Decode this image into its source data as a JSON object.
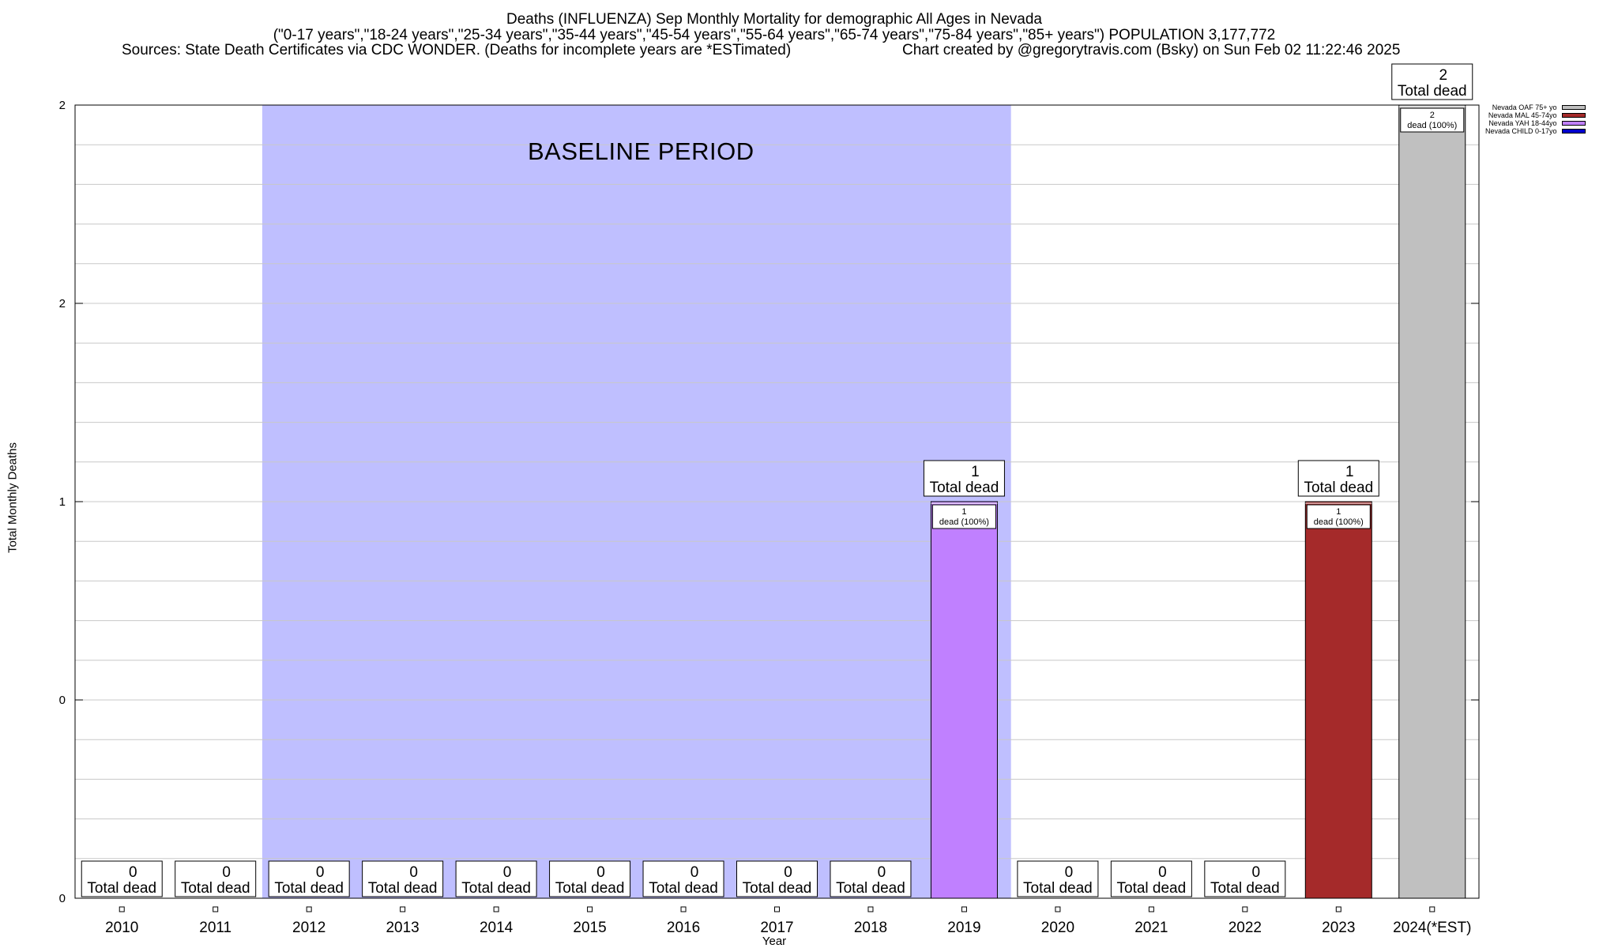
{
  "header": {
    "title_line1": "Deaths (INFLUENZA) Sep Monthly Mortality for demographic All Ages in Nevada",
    "title_line2": "(\"0-17 years\",\"18-24 years\",\"25-34 years\",\"35-44 years\",\"45-54 years\",\"55-64 years\",\"65-74 years\",\"75-84 years\",\"85+ years\") POPULATION 3,177,772",
    "sources": "Sources: State Death Certificates via CDC WONDER. (Deaths for incomplete years are *ESTimated)",
    "credit": "Chart created by @gregorytravis.com (Bsky) on Sun Feb 02 11:22:46 2025"
  },
  "chart_data": {
    "type": "bar",
    "stacked": true,
    "xlabel": "Year",
    "ylabel": "Total Monthly Deaths",
    "categories": [
      "2010",
      "2011",
      "2012",
      "2013",
      "2014",
      "2015",
      "2016",
      "2017",
      "2018",
      "2019",
      "2020",
      "2021",
      "2022",
      "2023",
      "2024(*EST)"
    ],
    "y_tick_labels": [
      "0",
      "0",
      "1",
      "2",
      "2"
    ],
    "ylim": [
      0,
      2
    ],
    "grid": true,
    "baseline_period": {
      "label": "BASELINE PERIOD",
      "from": "2012",
      "to": "2019"
    },
    "series": [
      {
        "name": "Nevada OAF 75+ yo",
        "color": "#c0c0c0",
        "values": [
          0,
          0,
          0,
          0,
          0,
          0,
          0,
          0,
          0,
          0,
          0,
          0,
          0,
          0,
          2
        ]
      },
      {
        "name": "Nevada MAL 45-74yo",
        "color": "#a52a2a",
        "values": [
          0,
          0,
          0,
          0,
          0,
          0,
          0,
          0,
          0,
          0,
          0,
          0,
          0,
          1,
          0
        ]
      },
      {
        "name": "Nevada YAH 18-44yo",
        "color": "#c080ff",
        "values": [
          0,
          0,
          0,
          0,
          0,
          0,
          0,
          0,
          0,
          1,
          0,
          0,
          0,
          0,
          0
        ]
      },
      {
        "name": "Nevada CHILD 0-17yo",
        "color": "#0000cd",
        "values": [
          0,
          0,
          0,
          0,
          0,
          0,
          0,
          0,
          0,
          0,
          0,
          0,
          0,
          0,
          0
        ]
      }
    ],
    "totals": [
      0,
      0,
      0,
      0,
      0,
      0,
      0,
      0,
      0,
      1,
      0,
      0,
      0,
      1,
      2
    ],
    "total_label_suffix": "Total dead",
    "segment_label_suffix": "dead (100%)",
    "legend_position": "top-right",
    "colors": {
      "baseline_fill": "#bfbfff",
      "grid": "#c8c8c8"
    }
  }
}
